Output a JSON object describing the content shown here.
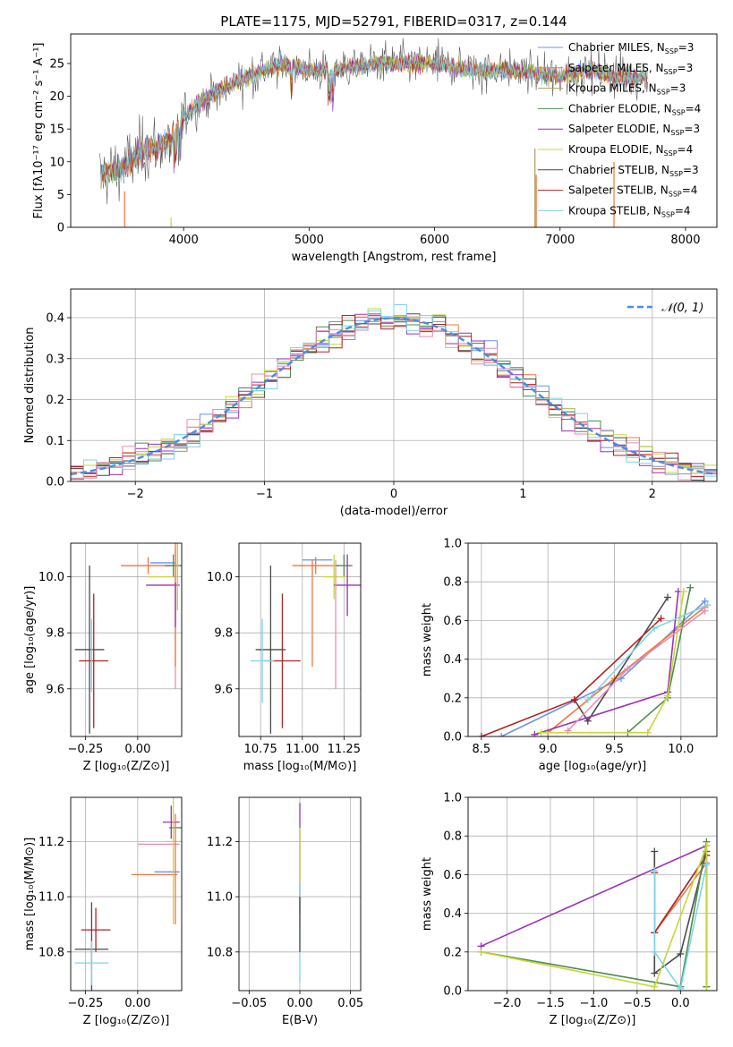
{
  "figure": {
    "title": "PLATE=1175, MJD=52791, FIBERID=0317, z=0.144"
  },
  "colors": [
    "#6495ed",
    "#f4743b",
    "#a89f5a",
    "#4e8b4e",
    "#9b30b8",
    "#c8d63c",
    "#4a4a4a",
    "#b22222",
    "#7fd3e8",
    "#e58fb6",
    "#cccc33"
  ],
  "chart_data": [
    {
      "id": "spectrum",
      "type": "line",
      "xlabel": "wavelength [Angstrom, rest frame]",
      "ylabel": "Flux [fλ10⁻¹⁷ erg cm⁻² s⁻¹ A⁻¹]",
      "xlim": [
        3100,
        8250
      ],
      "ylim": [
        0,
        29.5
      ],
      "xticks": [
        4000,
        5000,
        6000,
        7000,
        8000
      ],
      "yticks": [
        0,
        5,
        10,
        15,
        20,
        25
      ],
      "grid": false,
      "legend_position": "top-right",
      "legend": [
        "Chabrier MILES, N_SSP=3",
        "Salpeter MILES, N_SSP=3",
        "Kroupa MILES, N_SSP=3",
        "Chabrier ELODIE, N_SSP=4",
        "Salpeter ELODIE, N_SSP=3",
        "Kroupa ELODIE, N_SSP=4",
        "Chabrier STELIB, N_SSP=3",
        "Salpeter STELIB, N_SSP=4",
        "Kroupa STELIB, N_SSP=4"
      ],
      "continuum_x": [
        3330,
        3500,
        3700,
        3900,
        4000,
        4200,
        4500,
        4800,
        5000,
        5200,
        5500,
        6000,
        6300,
        6600,
        7000,
        7200,
        7500,
        7700
      ],
      "continuum_y": [
        8,
        9,
        12,
        13,
        17,
        20,
        23,
        25,
        24,
        24,
        25,
        25,
        24,
        24,
        23,
        24,
        23,
        23
      ],
      "cutoffs": [
        {
          "x": 3530,
          "y": 5.5,
          "series": 1
        },
        {
          "x": 3900,
          "y": 1.5,
          "series": 5
        },
        {
          "x": 6800,
          "y": 12,
          "series": 2
        },
        {
          "x": 6810,
          "y": 8,
          "series": 1
        },
        {
          "x": 7430,
          "y": 10,
          "series": 1
        }
      ]
    },
    {
      "id": "residuals",
      "type": "histogram",
      "xlabel": "(data-model)/error",
      "ylabel": "Normed distribution",
      "xlim": [
        -2.5,
        2.5
      ],
      "ylim": [
        0,
        0.47
      ],
      "xticks": [
        -2,
        -1,
        0,
        1,
        2
      ],
      "yticks": [
        0.0,
        0.1,
        0.2,
        0.3,
        0.4
      ],
      "grid": true,
      "legend": [
        "𝒩(0, 1)"
      ],
      "legend_position": "top-right",
      "bin_width": 0.1,
      "reference_curve": "normal(0,1)"
    },
    {
      "id": "age-vs-Z",
      "type": "errorbar",
      "xlabel": "Z [log₁₀(Z/Z⊙)]",
      "ylabel": "age  [log₁₀(age/yr)]",
      "xlim": [
        -0.32,
        0.21
      ],
      "ylim": [
        9.43,
        10.12
      ],
      "xticks": [
        -0.25,
        0.0
      ],
      "yticks": [
        9.6,
        9.8,
        10.0
      ],
      "grid": true,
      "points": [
        {
          "x": -0.23,
          "y": 9.74,
          "xerr": 0.07,
          "yerr": 0.3,
          "series": 6
        },
        {
          "x": -0.21,
          "y": 9.7,
          "xerr": 0.07,
          "yerr": 0.24,
          "series": 7
        },
        {
          "x": -0.22,
          "y": 9.72,
          "xerr": 0.0,
          "yerr": 0.13,
          "series": 8
        },
        {
          "x": 0.05,
          "y": 10.04,
          "xerr": 0.13,
          "yerr": 0.03,
          "series": 1
        },
        {
          "x": 0.12,
          "y": 10.05,
          "xerr": 0.06,
          "yerr": 0.0,
          "series": 0
        },
        {
          "x": 0.17,
          "y": 10.04,
          "xerr": 0.04,
          "yerr": 0.04,
          "series": 3
        },
        {
          "x": 0.11,
          "y": 10.0,
          "xerr": 0.06,
          "yerr": 0.0,
          "series": 5
        },
        {
          "x": 0.12,
          "y": 9.97,
          "xerr": 0.08,
          "yerr": 0.0,
          "series": 4
        },
        {
          "x": 0.18,
          "y": 9.85,
          "xerr": 0.0,
          "yerr": 0.25,
          "series": 9
        },
        {
          "x": 0.18,
          "y": 9.93,
          "xerr": 0.0,
          "yerr": 0.25,
          "series": 1
        },
        {
          "x": 0.19,
          "y": 10.0,
          "xerr": 0.0,
          "yerr": 0.12,
          "series": 10
        },
        {
          "x": 0.18,
          "y": 9.9,
          "xerr": 0.0,
          "yerr": 0.08,
          "series": 4
        }
      ]
    },
    {
      "id": "age-vs-mass",
      "type": "errorbar",
      "xlabel": "mass [log₁₀(M/M⊙)]",
      "ylabel": "",
      "xlim": [
        10.62,
        11.35
      ],
      "ylim": [
        9.43,
        10.12
      ],
      "xticks": [
        10.75,
        11.0,
        11.25
      ],
      "yticks": [
        9.6,
        9.8,
        10.0
      ],
      "grid": true,
      "points": [
        {
          "x": 10.81,
          "y": 9.74,
          "xerr": 0.09,
          "yerr": 0.3,
          "series": 6
        },
        {
          "x": 10.88,
          "y": 9.7,
          "xerr": 0.11,
          "yerr": 0.24,
          "series": 7
        },
        {
          "x": 10.76,
          "y": 9.7,
          "xerr": 0.07,
          "yerr": 0.15,
          "series": 8
        },
        {
          "x": 11.08,
          "y": 10.04,
          "xerr": 0.14,
          "yerr": 0.03,
          "series": 1
        },
        {
          "x": 11.09,
          "y": 10.06,
          "xerr": 0.09,
          "yerr": 0.0,
          "series": 0
        },
        {
          "x": 11.25,
          "y": 10.04,
          "xerr": 0.05,
          "yerr": 0.04,
          "series": 3
        },
        {
          "x": 11.19,
          "y": 10.0,
          "xerr": 0.07,
          "yerr": 0.08,
          "series": 5
        },
        {
          "x": 11.27,
          "y": 9.97,
          "xerr": 0.08,
          "yerr": 0.11,
          "series": 4
        },
        {
          "x": 11.2,
          "y": 9.83,
          "xerr": 0.0,
          "yerr": 0.23,
          "series": 9
        },
        {
          "x": 11.06,
          "y": 9.87,
          "xerr": 0.0,
          "yerr": 0.19,
          "series": 1
        }
      ]
    },
    {
      "id": "massweight-vs-age",
      "type": "line",
      "xlabel": "age  [log₁₀(age/yr)]",
      "ylabel": "mass weight",
      "xlim": [
        8.4,
        10.27
      ],
      "ylim": [
        0,
        1.0
      ],
      "xticks": [
        8.5,
        9.0,
        9.5,
        10.0
      ],
      "yticks": [
        0.0,
        0.2,
        0.4,
        0.6,
        0.8,
        1.0
      ],
      "grid": true,
      "series": [
        {
          "x": [
            8.65,
            9.55,
            10.18
          ],
          "y": [
            0.0,
            0.3,
            0.7
          ],
          "series": 0
        },
        {
          "x": [
            9.0,
            9.5,
            10.18
          ],
          "y": [
            0.02,
            0.3,
            0.67
          ],
          "series": 1
        },
        {
          "x": [
            9.2,
            9.3,
            9.9
          ],
          "y": [
            0.19,
            0.08,
            0.72
          ],
          "series": 6
        },
        {
          "x": [
            8.5,
            9.2,
            9.85
          ],
          "y": [
            0.0,
            0.19,
            0.61
          ],
          "series": 7
        },
        {
          "x": [
            8.9,
            9.9,
            9.98
          ],
          "y": [
            0.01,
            0.23,
            0.75
          ],
          "series": 4
        },
        {
          "x": [
            9.6,
            9.9,
            10.07
          ],
          "y": [
            0.02,
            0.2,
            0.77
          ],
          "series": 3
        },
        {
          "x": [
            8.95,
            9.75,
            9.9,
            10.02
          ],
          "y": [
            0.02,
            0.02,
            0.21,
            0.75
          ],
          "series": 5
        },
        {
          "x": [
            9.3,
            9.8,
            10.2
          ],
          "y": [
            0.19,
            0.56,
            0.68
          ],
          "series": 8
        },
        {
          "x": [
            9.15,
            9.6,
            10.18
          ],
          "y": [
            0.03,
            0.35,
            0.65
          ],
          "series": 9
        }
      ]
    },
    {
      "id": "mass-vs-Z",
      "type": "errorbar",
      "xlabel": "Z [log₁₀(Z/Z⊙)]",
      "ylabel": "mass [log₁₀(M/M⊙)]",
      "xlim": [
        -0.32,
        0.21
      ],
      "ylim": [
        10.66,
        11.36
      ],
      "xticks": [
        -0.25,
        0.0
      ],
      "yticks": [
        10.8,
        11.0,
        11.2
      ],
      "grid": true,
      "points": [
        {
          "x": -0.22,
          "y": 10.81,
          "xerr": 0.08,
          "yerr": 0.17,
          "series": 6
        },
        {
          "x": -0.2,
          "y": 10.88,
          "xerr": 0.07,
          "yerr": 0.08,
          "series": 7
        },
        {
          "x": -0.22,
          "y": 10.76,
          "xerr": 0.08,
          "yerr": 0.08,
          "series": 8
        },
        {
          "x": 0.08,
          "y": 11.08,
          "xerr": 0.11,
          "yerr": 0.0,
          "series": 1
        },
        {
          "x": 0.14,
          "y": 11.09,
          "xerr": 0.06,
          "yerr": 0.0,
          "series": 0
        },
        {
          "x": 0.18,
          "y": 11.25,
          "xerr": 0.03,
          "yerr": 0.0,
          "series": 3
        },
        {
          "x": 0.1,
          "y": 11.19,
          "xerr": 0.1,
          "yerr": 0.0,
          "series": 9
        },
        {
          "x": 0.16,
          "y": 11.27,
          "xerr": 0.04,
          "yerr": 0.06,
          "series": 4
        },
        {
          "x": 0.17,
          "y": 11.2,
          "xerr": 0.04,
          "yerr": 0.3,
          "series": 5
        },
        {
          "x": 0.18,
          "y": 11.1,
          "xerr": 0.0,
          "yerr": 0.2,
          "series": 1
        }
      ]
    },
    {
      "id": "mass-vs-EBV",
      "type": "errorbar",
      "xlabel": "E(B-V)",
      "ylabel": "",
      "xlim": [
        -0.06,
        0.06
      ],
      "ylim": [
        10.66,
        11.36
      ],
      "xticks": [
        -0.05,
        0.0,
        0.05
      ],
      "yticks": [
        10.8,
        11.0,
        11.2
      ],
      "grid": true,
      "points": [
        {
          "x": 0.0,
          "y": 11.14,
          "xerr": 0.0,
          "yerr": 0.2,
          "series": 4
        },
        {
          "x": 0.0,
          "y": 11.07,
          "xerr": 0.0,
          "yerr": 0.18,
          "series": 5
        },
        {
          "x": 0.0,
          "y": 10.87,
          "xerr": 0.0,
          "yerr": 0.18,
          "series": 8
        },
        {
          "x": 0.0,
          "y": 10.9,
          "xerr": 0.0,
          "yerr": 0.1,
          "series": 6
        }
      ]
    },
    {
      "id": "massweight-vs-Z",
      "type": "line",
      "xlabel": "Z [log₁₀(Z/Z⊙)]",
      "ylabel": "mass weight",
      "xlim": [
        -2.45,
        0.42
      ],
      "ylim": [
        0,
        1.0
      ],
      "xticks": [
        -2.0,
        -1.5,
        -1.0,
        -0.5,
        0.0
      ],
      "yticks": [
        0.0,
        0.2,
        0.4,
        0.6,
        0.8,
        1.0
      ],
      "grid": true,
      "series": [
        {
          "x": [
            -0.3,
            0.3
          ],
          "y": [
            0.3,
            0.7
          ],
          "series": 0
        },
        {
          "x": [
            -0.3,
            0.3,
            0.3
          ],
          "y": [
            0.3,
            0.66,
            0.02
          ],
          "series": 1
        },
        {
          "x": [
            -0.3,
            -0.3,
            0.0,
            0.3
          ],
          "y": [
            0.72,
            0.09,
            0.19,
            0.72
          ],
          "series": 6
        },
        {
          "x": [
            -0.3,
            -0.3,
            0.3
          ],
          "y": [
            0.61,
            0.3,
            0.7
          ],
          "series": 7
        },
        {
          "x": [
            -2.3,
            0.3
          ],
          "y": [
            0.23,
            0.75
          ],
          "series": 4
        },
        {
          "x": [
            -2.3,
            0.0,
            0.3,
            0.3
          ],
          "y": [
            0.2,
            0.02,
            0.77,
            0.02
          ],
          "series": 3
        },
        {
          "x": [
            -2.3,
            -0.3,
            0.3,
            0.3
          ],
          "y": [
            0.2,
            0.02,
            0.75,
            0.0
          ],
          "series": 5
        },
        {
          "x": [
            -0.3,
            -0.3,
            0.0,
            0.3
          ],
          "y": [
            0.62,
            0.2,
            0.01,
            0.65
          ],
          "series": 8
        }
      ]
    }
  ]
}
